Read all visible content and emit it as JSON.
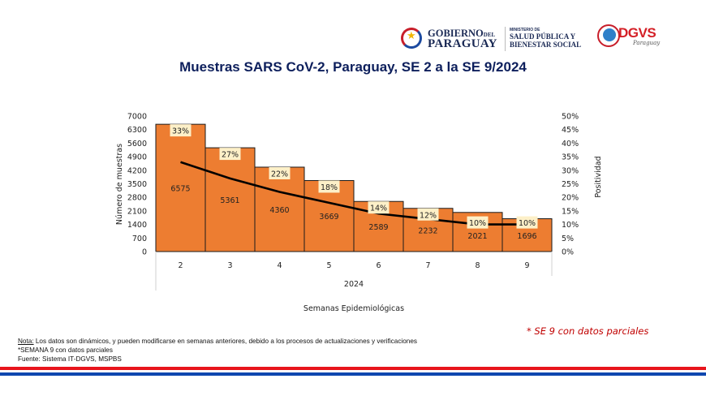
{
  "header": {
    "gobierno_line1": "GOBIERNO",
    "gobierno_del": "DEL",
    "gobierno_line2": "PARAGUAY",
    "ministerio_small": "MINISTERIO DE",
    "ministerio_line1": "SALUD PÚBLICA Y",
    "ministerio_line2": "BIENESTAR SOCIAL",
    "dgvs": "DGVS",
    "dgvs_sub": "Paraguay"
  },
  "colors": {
    "bar": "#ed7d31",
    "bar_border": "#1a1a1a",
    "line": "#000000",
    "label_bg": "#fdf0c8",
    "title": "#0d1f5c",
    "red": "#e8141c",
    "blue": "#0f47af"
  },
  "chart_data": {
    "type": "bar",
    "title": "Muestras SARS CoV-2, Paraguay, SE 2 a la SE 9/2024",
    "categories": [
      "2",
      "3",
      "4",
      "5",
      "6",
      "7",
      "8",
      "9"
    ],
    "category_group": "2024",
    "xlabel": "Semanas Epidemiológicas",
    "ylabel": "Número de muestras",
    "y2label": "Positividad",
    "ylim": [
      0,
      7000
    ],
    "yticks": [
      0,
      700,
      1400,
      2100,
      2800,
      3500,
      4200,
      4900,
      5600,
      6300,
      7000
    ],
    "y2lim": [
      0,
      50
    ],
    "y2ticks": [
      "0%",
      "5%",
      "10%",
      "15%",
      "20%",
      "25%",
      "30%",
      "35%",
      "40%",
      "45%",
      "50%"
    ],
    "series": [
      {
        "name": "Número de muestras",
        "type": "bar",
        "axis": "left",
        "values": [
          6575,
          5361,
          4360,
          3669,
          2589,
          2232,
          2021,
          1696
        ]
      },
      {
        "name": "Positividad",
        "type": "line",
        "axis": "right",
        "values": [
          33,
          27,
          22,
          18,
          14,
          12,
          10,
          10
        ],
        "labels": [
          "33%",
          "27%",
          "22%",
          "18%",
          "14%",
          "12%",
          "10%",
          "10%"
        ]
      }
    ],
    "grid": false
  },
  "notes": {
    "nota_label": "Nota:",
    "nota_text": " Los datos son dinámicos, y pueden modificarse en semanas anteriores, debido a los procesos de actualizaciones y verificaciones",
    "semana": "*SEMANA 9  con datos parciales",
    "fuente": "Fuente: Sistema IT-DGVS, MSPBS"
  },
  "partial_note": "* SE 9 con datos parciales"
}
